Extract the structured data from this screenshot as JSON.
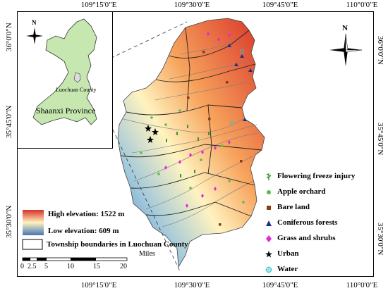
{
  "coordinates": {
    "top": [
      "109°15'0\"E",
      "109°30'0\"E",
      "109°45'0\"E",
      "110°0'0\"E"
    ],
    "bottom": [
      "109°15'0\"E",
      "109°30'0\"E",
      "109°45'0\"E",
      "110°0'0\"E"
    ],
    "left": [
      "36°0'0\"N",
      "35°45'0\"N",
      "35°30'0\"N"
    ],
    "right": [
      "36°0'0\"N",
      "35°45'0\"N",
      "35°30'0\"N"
    ]
  },
  "inset": {
    "county_label": "Luochuan County",
    "province_label": "Shaanxi Province",
    "north_label": "N",
    "province_fill": "#c6e8b0"
  },
  "north_arrow_label": "N",
  "elevation": {
    "high_label": "High elevation: 1522 m",
    "low_label": "Low elevation: 609 m",
    "high_color": "#d73027",
    "mid_color": "#fff3c0",
    "low_color": "#4575b4"
  },
  "boundary_label": "Township boundaries in Luochuan County",
  "scale_bar": {
    "unit": "Miles",
    "ticks": [
      "0",
      "2.5",
      "5",
      "10",
      "15",
      "20"
    ]
  },
  "legend": [
    {
      "label": "Flowering freeze injury",
      "icon": "tree-icon",
      "color": "#2e9d2e"
    },
    {
      "label": "Apple orchard",
      "icon": "circle-icon",
      "color": "#5dbb46"
    },
    {
      "label": "Bare land",
      "icon": "square-icon",
      "color": "#8b3a1e"
    },
    {
      "label": "Coniferous forests",
      "icon": "triangle-icon",
      "color": "#1a2f8c"
    },
    {
      "label": "Grass and shrubs",
      "icon": "diamond-icon",
      "color": "#e02ad0"
    },
    {
      "label": "Urban",
      "icon": "star-icon",
      "color": "#000000"
    },
    {
      "label": "Water",
      "icon": "sparkle-icon",
      "color": "#35c0c8"
    }
  ]
}
